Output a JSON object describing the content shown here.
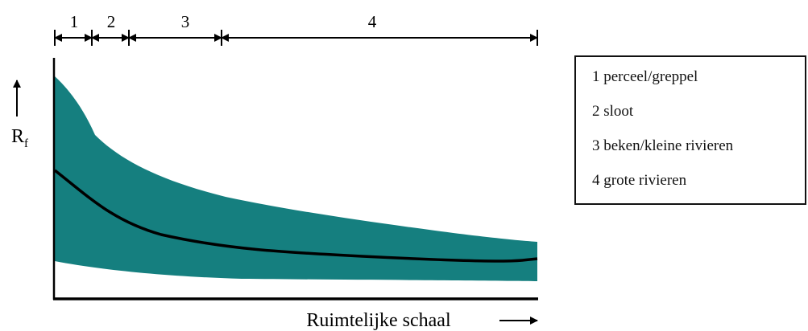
{
  "segments": [
    {
      "label": "1",
      "name": "perceel/greppel"
    },
    {
      "label": "2",
      "name": "sloot"
    },
    {
      "label": "3",
      "name": "beken/kleine rivieren"
    },
    {
      "label": "4",
      "name": "grote rivieren"
    }
  ],
  "legend": [
    "1 perceel/greppel",
    "2 sloot",
    "3 beken/kleine rivieren",
    "4 grote rivieren"
  ],
  "y_axis_label": "R",
  "y_axis_subscript": "f",
  "x_axis_label": "Ruimtelijke schaal",
  "colors": {
    "band": "#157f7f",
    "line": "#000000",
    "axes": "#000000"
  }
}
